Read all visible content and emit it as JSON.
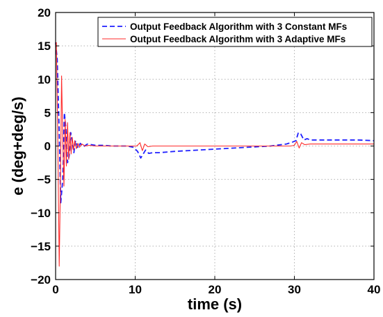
{
  "chart_data": {
    "type": "line",
    "title": "",
    "xlabel": "time (s)",
    "ylabel": "e (deg+deg/s)",
    "xlim": [
      0,
      40
    ],
    "ylim": [
      -20,
      20
    ],
    "xticks": [
      "0",
      "10",
      "20",
      "30",
      "40"
    ],
    "yticks": [
      "20",
      "15",
      "10",
      "5",
      "0",
      "−5",
      "−10",
      "−15",
      "−20"
    ],
    "grid": true,
    "legend_position": "top-right",
    "series": [
      {
        "name": "Output Feedback Algorithm with 3 Constant MFs",
        "color": "#1f1fff",
        "line_style": "dashed",
        "x": [
          0,
          0.2,
          0.45,
          0.65,
          0.9,
          1.1,
          1.3,
          1.5,
          1.7,
          1.9,
          2.1,
          2.3,
          2.5,
          2.8,
          3.1,
          3.5,
          4,
          5,
          6,
          7,
          8,
          9,
          9.8,
          10.3,
          10.7,
          11.0,
          11.3,
          11.7,
          12.2,
          13,
          15,
          18,
          21,
          24,
          27,
          29,
          29.8,
          30.2,
          30.5,
          30.8,
          31.2,
          31.6,
          32,
          33,
          35,
          38,
          40
        ],
        "y": [
          15.5,
          13,
          2,
          -8.5,
          -5,
          5,
          2.5,
          -2.5,
          -1.5,
          2,
          0.5,
          -1,
          0.8,
          -0.3,
          0.4,
          -0.1,
          0.3,
          0.1,
          0.1,
          0,
          0,
          0,
          -0.2,
          -0.8,
          -1.8,
          -1.2,
          -0.6,
          -1.1,
          -1.0,
          -1.0,
          -0.8,
          -0.6,
          -0.4,
          -0.2,
          0,
          0.3,
          0.6,
          0.8,
          2.0,
          1.8,
          0.9,
          1.1,
          0.9,
          0.9,
          0.9,
          0.9,
          0.8
        ]
      },
      {
        "name": "Output Feedback Algorithm with 3 Adaptive MFs",
        "color": "#ff2a2a",
        "line_style": "solid",
        "x": [
          0,
          0.1,
          0.25,
          0.45,
          0.6,
          0.75,
          0.9,
          1.05,
          1.2,
          1.35,
          1.5,
          1.65,
          1.8,
          1.95,
          2.1,
          2.25,
          2.4,
          2.6,
          2.8,
          3.0,
          3.3,
          3.7,
          4.2,
          5,
          7,
          9,
          10.2,
          10.6,
          10.9,
          11.2,
          11.6,
          12.2,
          14,
          20,
          26,
          29.5,
          30.0,
          30.3,
          30.6,
          30.9,
          31.3,
          32,
          35,
          40
        ],
        "y": [
          14.8,
          15.5,
          3,
          -18,
          -6,
          10.5,
          1,
          -6,
          4,
          -3,
          3.5,
          -2,
          2,
          -1.2,
          1.3,
          -0.6,
          0.8,
          -0.4,
          0.4,
          -0.2,
          0.3,
          0,
          0.1,
          0,
          0,
          0,
          0,
          0.5,
          -0.7,
          0.3,
          -0.1,
          0,
          0,
          0,
          0,
          0,
          0.1,
          0.7,
          -0.3,
          0.5,
          0.2,
          0.3,
          0.3,
          0.3
        ]
      }
    ]
  }
}
